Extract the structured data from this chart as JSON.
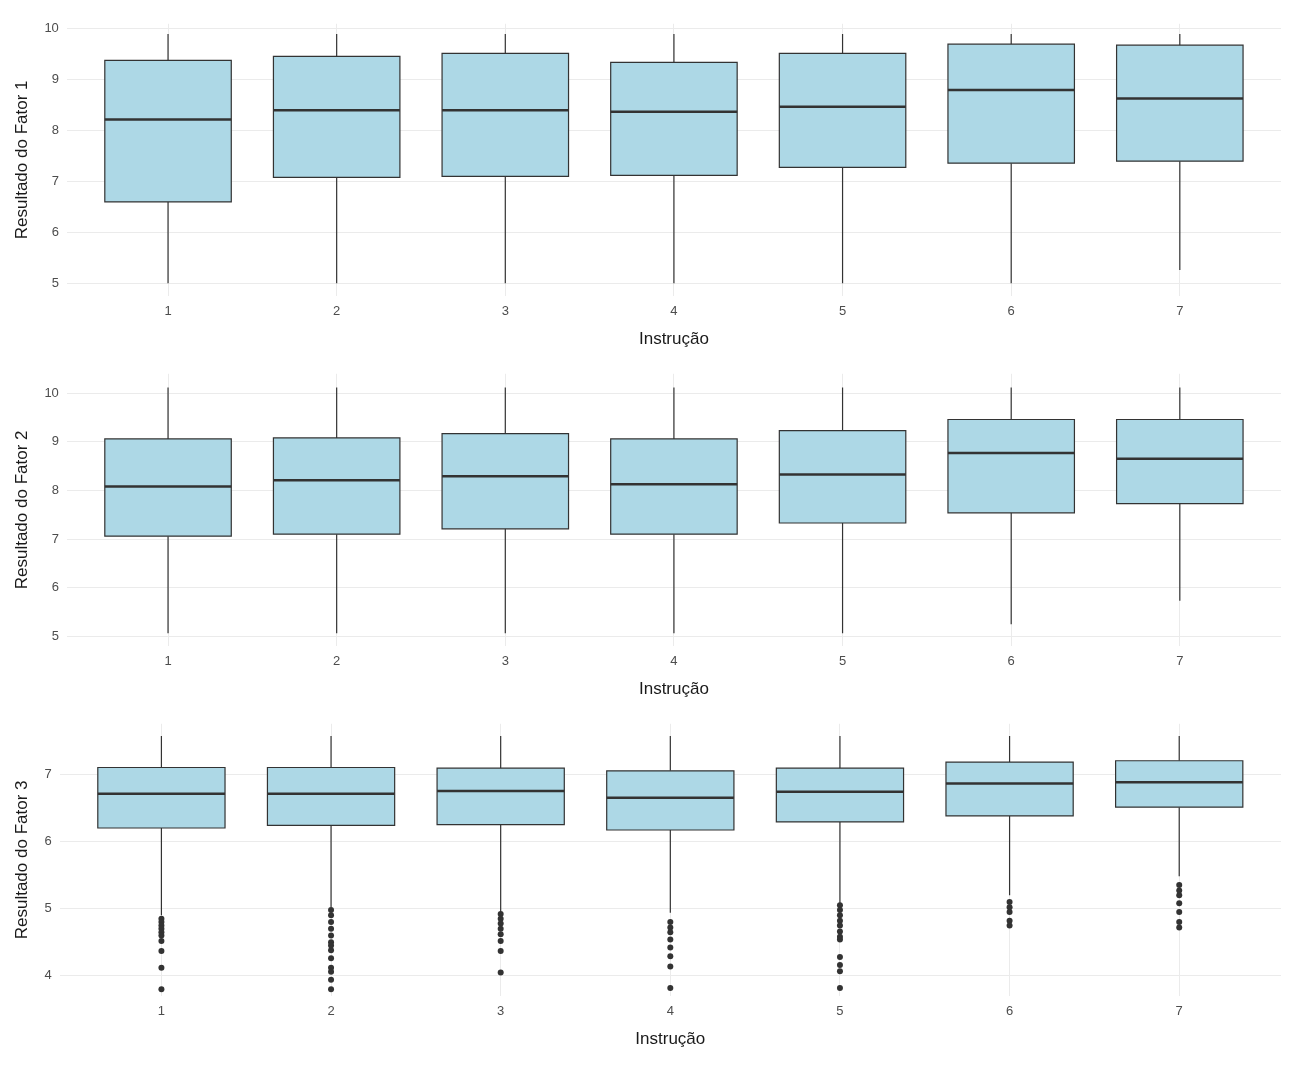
{
  "chart_data": [
    {
      "type": "box",
      "categories": [
        "1",
        "2",
        "3",
        "4",
        "5",
        "6",
        "7"
      ],
      "xlabel": "Instrução",
      "ylabel": "Resultado do Fator 1",
      "ylim": [
        4.75,
        10.1
      ],
      "yticks": [
        5,
        6,
        7,
        8,
        9,
        10
      ],
      "grid": true,
      "color": "#add8e6",
      "boxes": [
        {
          "low": 5.0,
          "q1": 6.6,
          "median": 8.22,
          "q3": 9.38,
          "high": 9.9
        },
        {
          "low": 5.0,
          "q1": 7.08,
          "median": 8.4,
          "q3": 9.46,
          "high": 9.9
        },
        {
          "low": 5.0,
          "q1": 7.1,
          "median": 8.4,
          "q3": 9.52,
          "high": 9.9
        },
        {
          "low": 5.0,
          "q1": 7.12,
          "median": 8.37,
          "q3": 9.34,
          "high": 9.9
        },
        {
          "low": 5.0,
          "q1": 7.28,
          "median": 8.47,
          "q3": 9.52,
          "high": 9.9
        },
        {
          "low": 5.0,
          "q1": 7.36,
          "median": 8.8,
          "q3": 9.7,
          "high": 9.9
        },
        {
          "low": 5.26,
          "q1": 7.4,
          "median": 8.63,
          "q3": 9.68,
          "high": 9.9
        }
      ]
    },
    {
      "type": "box",
      "categories": [
        "1",
        "2",
        "3",
        "4",
        "5",
        "6",
        "7"
      ],
      "xlabel": "Instrução",
      "ylabel": "Resultado do Fator 2",
      "ylim": [
        4.8,
        10.4
      ],
      "yticks": [
        5,
        6,
        7,
        8,
        9,
        10
      ],
      "grid": true,
      "color": "#add8e6",
      "boxes": [
        {
          "low": 5.06,
          "q1": 7.06,
          "median": 8.08,
          "q3": 9.06,
          "high": 10.12
        },
        {
          "low": 5.06,
          "q1": 7.1,
          "median": 8.21,
          "q3": 9.08,
          "high": 10.12
        },
        {
          "low": 5.06,
          "q1": 7.21,
          "median": 8.29,
          "q3": 9.17,
          "high": 10.12
        },
        {
          "low": 5.06,
          "q1": 7.1,
          "median": 8.13,
          "q3": 9.06,
          "high": 10.12
        },
        {
          "low": 5.06,
          "q1": 7.33,
          "median": 8.33,
          "q3": 9.23,
          "high": 10.12
        },
        {
          "low": 5.25,
          "q1": 7.54,
          "median": 8.77,
          "q3": 9.46,
          "high": 10.12
        },
        {
          "low": 5.73,
          "q1": 7.73,
          "median": 8.65,
          "q3": 9.46,
          "high": 10.12
        }
      ]
    },
    {
      "type": "box",
      "categories": [
        "1",
        "2",
        "3",
        "4",
        "5",
        "6",
        "7"
      ],
      "xlabel": "Instrução",
      "ylabel": "Resultado do Fator 3",
      "ylim": [
        3.7,
        7.75
      ],
      "yticks": [
        4,
        5,
        6,
        7
      ],
      "grid": true,
      "color": "#add8e6",
      "boxes": [
        {
          "low": 4.9,
          "q1": 6.2,
          "median": 6.71,
          "q3": 7.1,
          "high": 7.57,
          "outliers": [
            4.85,
            4.8,
            4.75,
            4.7,
            4.65,
            4.6,
            4.52,
            4.37,
            4.12,
            3.8
          ]
        },
        {
          "low": 5.02,
          "q1": 6.24,
          "median": 6.71,
          "q3": 7.1,
          "high": 7.57,
          "outliers": [
            4.98,
            4.9,
            4.8,
            4.7,
            4.6,
            4.5,
            4.45,
            4.38,
            4.26,
            4.12,
            4.06,
            3.94,
            3.8
          ]
        },
        {
          "low": 4.95,
          "q1": 6.25,
          "median": 6.75,
          "q3": 7.09,
          "high": 7.57,
          "outliers": [
            4.92,
            4.85,
            4.78,
            4.7,
            4.62,
            4.52,
            4.37,
            4.05
          ]
        },
        {
          "low": 4.94,
          "q1": 6.17,
          "median": 6.65,
          "q3": 7.05,
          "high": 7.57,
          "outliers": [
            4.8,
            4.72,
            4.65,
            4.54,
            4.42,
            4.29,
            4.14,
            3.82
          ]
        },
        {
          "low": 5.08,
          "q1": 6.29,
          "median": 6.74,
          "q3": 7.09,
          "high": 7.57,
          "outliers": [
            5.05,
            4.98,
            4.9,
            4.82,
            4.75,
            4.66,
            4.58,
            4.54,
            4.28,
            4.16,
            4.07,
            3.82
          ]
        },
        {
          "low": 5.2,
          "q1": 6.38,
          "median": 6.86,
          "q3": 7.18,
          "high": 7.57,
          "outliers": [
            5.1,
            5.02,
            4.95,
            4.82,
            4.75
          ]
        },
        {
          "low": 5.48,
          "q1": 6.51,
          "median": 6.88,
          "q3": 7.2,
          "high": 7.57,
          "outliers": [
            5.35,
            5.27,
            5.2,
            5.08,
            4.95,
            4.8,
            4.72
          ]
        }
      ]
    }
  ]
}
